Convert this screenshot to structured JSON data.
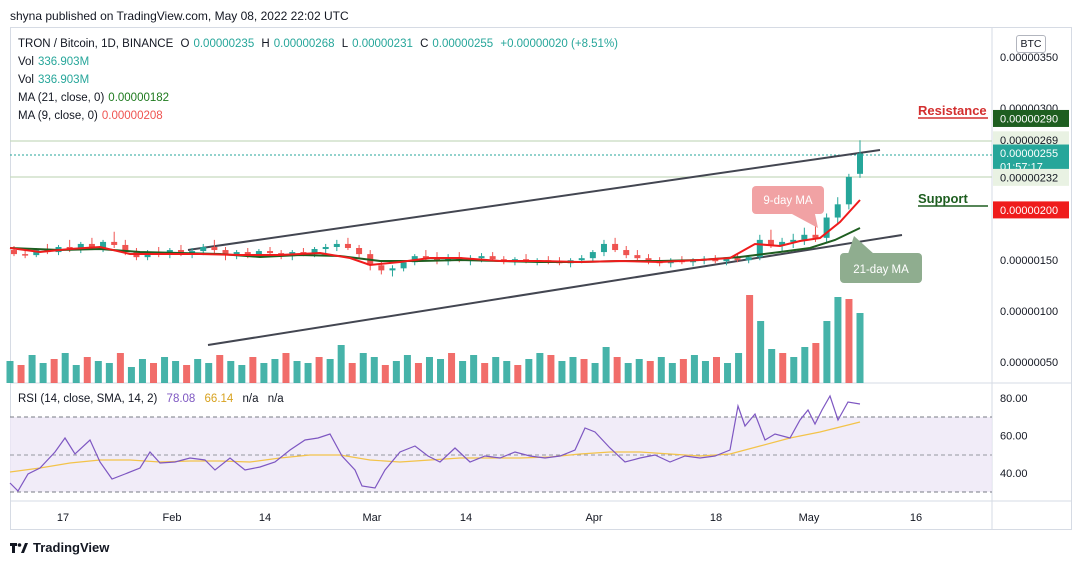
{
  "header": {
    "published_by": "shyna published on TradingView.com, May 08, 2022 22:02 UTC"
  },
  "legend": {
    "symbol": "TRON / Bitcoin, 1D, BINANCE",
    "open_label": "O",
    "open": "0.00000235",
    "high_label": "H",
    "high": "0.00000268",
    "low_label": "L",
    "low": "0.00000231",
    "close_label": "C",
    "close": "0.00000255",
    "change": "+0.00000020 (+8.51%)",
    "vol1_label": "Vol",
    "vol1": "336.903M",
    "vol2_label": "Vol",
    "vol2": "336.903M",
    "ma21_label": "MA (21, close, 0)",
    "ma21": "0.00000182",
    "ma9_label": "MA (9, close, 0)",
    "ma9": "0.00000208"
  },
  "currency": "BTC",
  "price_axis": {
    "ticks": [
      {
        "label": "0.00000350",
        "value": 350
      },
      {
        "label": "0.00000300",
        "value": 300
      },
      {
        "label": "0.00000150",
        "value": 150
      },
      {
        "label": "0.00000100",
        "value": 100
      },
      {
        "label": "0.00000050",
        "value": 50
      }
    ],
    "tags": [
      {
        "label": "0.00000290",
        "value": 290,
        "color": "#1e5e20"
      },
      {
        "label": "0.00000269",
        "value": 269,
        "color": "#e9f2e3",
        "text_color": "#131722"
      },
      {
        "label": "0.00000255",
        "value": 255,
        "color": "#26a69a",
        "sub": "01:57:17"
      },
      {
        "label": "0.00000232",
        "value": 232,
        "color": "#e9f2e3",
        "text_color": "#131722"
      },
      {
        "label": "0.00000200",
        "value": 200,
        "color": "#ef1c1c"
      }
    ]
  },
  "annotations": {
    "resistance": "Resistance",
    "support": "Support",
    "ma9_callout": "9-day MA",
    "ma21_callout": "21-day MA"
  },
  "rsi": {
    "label": "RSI (14, close, SMA, 14, 2)",
    "value": "78.08",
    "sma": "66.14",
    "na1": "n/a",
    "na2": "n/a",
    "ticks": [
      {
        "label": "80.00",
        "value": 80
      },
      {
        "label": "60.00",
        "value": 60
      },
      {
        "label": "40.00",
        "value": 40
      }
    ]
  },
  "time_axis": [
    "17",
    "Feb",
    "14",
    "Mar",
    "14",
    "Apr",
    "18",
    "May",
    "16"
  ],
  "footer": {
    "brand": "TradingView"
  },
  "colors": {
    "up": "#26a69a",
    "down": "#ef5350",
    "ma9": "#ef1c1c",
    "ma21": "#1e5e20",
    "rsi": "#7e57c2",
    "rsi_sma": "#f3c34a"
  },
  "chart_data": {
    "type": "candlestick",
    "candles_ohlc_e8": [
      [
        160,
        164,
        154,
        156
      ],
      [
        156,
        160,
        152,
        155
      ],
      [
        155,
        162,
        153,
        160
      ],
      [
        160,
        166,
        156,
        158
      ],
      [
        158,
        165,
        155,
        163
      ],
      [
        163,
        170,
        158,
        161
      ],
      [
        161,
        168,
        157,
        166
      ],
      [
        166,
        172,
        160,
        162
      ],
      [
        162,
        170,
        158,
        168
      ],
      [
        168,
        178,
        162,
        165
      ],
      [
        165,
        170,
        155,
        158
      ],
      [
        158,
        162,
        150,
        153
      ],
      [
        153,
        160,
        150,
        158
      ],
      [
        158,
        163,
        153,
        156
      ],
      [
        156,
        162,
        152,
        160
      ],
      [
        160,
        165,
        154,
        157
      ],
      [
        157,
        162,
        152,
        159
      ],
      [
        159,
        166,
        155,
        163
      ],
      [
        163,
        170,
        157,
        160
      ],
      [
        160,
        163,
        150,
        155
      ],
      [
        155,
        160,
        151,
        158
      ],
      [
        158,
        162,
        152,
        156
      ],
      [
        156,
        161,
        153,
        159
      ],
      [
        159,
        163,
        154,
        157
      ],
      [
        157,
        160,
        151,
        154
      ],
      [
        154,
        160,
        150,
        158
      ],
      [
        158,
        162,
        154,
        156
      ],
      [
        156,
        163,
        153,
        161
      ],
      [
        161,
        166,
        157,
        163
      ],
      [
        163,
        170,
        159,
        166
      ],
      [
        166,
        172,
        160,
        162
      ],
      [
        162,
        165,
        152,
        156
      ],
      [
        156,
        160,
        140,
        145
      ],
      [
        145,
        150,
        136,
        140
      ],
      [
        140,
        145,
        134,
        142
      ],
      [
        142,
        150,
        139,
        148
      ],
      [
        148,
        156,
        145,
        154
      ],
      [
        154,
        160,
        150,
        152
      ],
      [
        152,
        158,
        146,
        149
      ],
      [
        149,
        156,
        145,
        153
      ],
      [
        153,
        158,
        148,
        150
      ],
      [
        150,
        155,
        145,
        152
      ],
      [
        152,
        157,
        148,
        154
      ],
      [
        154,
        158,
        150,
        151
      ],
      [
        151,
        154,
        146,
        149
      ],
      [
        149,
        153,
        145,
        151
      ],
      [
        151,
        156,
        147,
        148
      ],
      [
        148,
        152,
        145,
        150
      ],
      [
        150,
        154,
        146,
        149
      ],
      [
        149,
        153,
        145,
        147
      ],
      [
        147,
        152,
        143,
        150
      ],
      [
        150,
        155,
        147,
        152
      ],
      [
        152,
        160,
        148,
        158
      ],
      [
        158,
        170,
        154,
        166
      ],
      [
        166,
        172,
        158,
        160
      ],
      [
        160,
        164,
        152,
        155
      ],
      [
        155,
        160,
        149,
        152
      ],
      [
        152,
        156,
        146,
        149
      ],
      [
        149,
        153,
        144,
        147
      ],
      [
        147,
        152,
        143,
        150
      ],
      [
        150,
        154,
        146,
        148
      ],
      [
        148,
        152,
        144,
        150
      ],
      [
        150,
        154,
        146,
        151
      ],
      [
        151,
        155,
        147,
        149
      ],
      [
        149,
        153,
        145,
        152
      ],
      [
        152,
        156,
        148,
        150
      ],
      [
        150,
        155,
        147,
        153
      ],
      [
        153,
        175,
        150,
        170
      ],
      [
        170,
        180,
        162,
        165
      ],
      [
        165,
        172,
        158,
        168
      ],
      [
        168,
        176,
        162,
        170
      ],
      [
        170,
        182,
        165,
        175
      ],
      [
        175,
        186,
        168,
        172
      ],
      [
        172,
        196,
        168,
        192
      ],
      [
        192,
        212,
        185,
        205
      ],
      [
        205,
        235,
        200,
        232
      ],
      [
        235,
        268,
        231,
        255
      ]
    ],
    "ma9_e8": [],
    "ma21_e8": [],
    "volume_m": [],
    "rsi_values": [],
    "rsi_sma_values": []
  }
}
